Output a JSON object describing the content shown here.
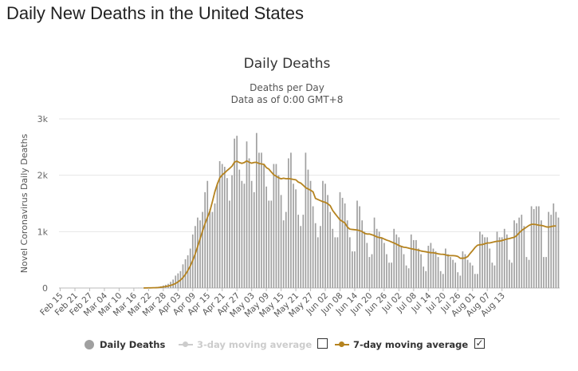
{
  "page_title": "Daily New Deaths in the United States",
  "colors": {
    "bar": "#a0a0a0",
    "line": "#b5831f",
    "disabled": "#cccccc",
    "grid": "#e6e6e6",
    "text": "#333333"
  },
  "chart_data": {
    "type": "bar",
    "title": "Daily Deaths",
    "subtitle_lines": [
      "Deaths per Day",
      "Data as of 0:00 GMT+8"
    ],
    "ylabel": "Novel Coronavirus Daily Deaths",
    "xlabel": "",
    "ylim": [
      0,
      3000
    ],
    "yticks": [
      {
        "value": 0,
        "label": "0"
      },
      {
        "value": 1000,
        "label": "1k"
      },
      {
        "value": 2000,
        "label": "2k"
      },
      {
        "value": 3000,
        "label": "3k"
      }
    ],
    "grid": true,
    "legend_position": "bottom",
    "start_date": "Feb 15",
    "x_tick_labels": [
      "Feb 15",
      "Feb 21",
      "Feb 27",
      "Mar 04",
      "Mar 10",
      "Mar 16",
      "Mar 22",
      "Mar 28",
      "Apr 03",
      "Apr 09",
      "Apr 15",
      "Apr 21",
      "Apr 27",
      "May 03",
      "May 09",
      "May 15",
      "May 21",
      "May 27",
      "Jun 02",
      "Jun 08",
      "Jun 14",
      "Jun 20",
      "Jun 26",
      "Jul 02",
      "Jul 08",
      "Jul 14",
      "Jul 20",
      "Jul 26",
      "Aug 01",
      "Aug 07",
      "Aug 13"
    ],
    "series": [
      {
        "name": "Daily Deaths",
        "kind": "bar",
        "values": [
          0,
          0,
          0,
          0,
          0,
          0,
          0,
          0,
          0,
          0,
          0,
          0,
          0,
          0,
          0,
          0,
          0,
          0,
          0,
          0,
          0,
          0,
          0,
          0,
          0,
          0,
          0,
          0,
          0,
          0,
          1,
          2,
          3,
          4,
          3,
          4,
          5,
          7,
          12,
          16,
          22,
          30,
          45,
          58,
          75,
          110,
          150,
          220,
          260,
          300,
          420,
          510,
          580,
          700,
          950,
          1100,
          1250,
          1200,
          1350,
          1700,
          1900,
          1400,
          1350,
          1500,
          1850,
          2250,
          2200,
          2150,
          1950,
          1550,
          2000,
          2650,
          2700,
          2100,
          1900,
          1850,
          2600,
          2300,
          1900,
          1700,
          2750,
          2400,
          2400,
          2200,
          1800,
          1550,
          1550,
          2200,
          2200,
          2000,
          1650,
          1200,
          1350,
          2300,
          2400,
          1850,
          1750,
          1300,
          1100,
          1300,
          2400,
          2100,
          1900,
          1450,
          1150,
          900,
          1100,
          1900,
          1850,
          1650,
          1350,
          1050,
          900,
          900,
          1700,
          1600,
          1500,
          1200,
          900,
          650,
          650,
          1550,
          1450,
          1200,
          1000,
          800,
          550,
          600,
          1250,
          1050,
          1000,
          900,
          800,
          600,
          450,
          450,
          1050,
          950,
          900,
          750,
          600,
          400,
          350,
          950,
          850,
          850,
          700,
          600,
          380,
          300,
          750,
          800,
          700,
          650,
          550,
          300,
          250,
          700,
          600,
          550,
          500,
          450,
          280,
          220,
          650,
          600,
          500,
          450,
          400,
          250,
          250,
          1000,
          950,
          900,
          900,
          700,
          450,
          400,
          1000,
          900,
          900,
          1050,
          950,
          500,
          450,
          1200,
          1150,
          1250,
          1300,
          1100,
          550,
          500,
          1450,
          1400,
          1450,
          1450,
          1200,
          550,
          550,
          1350,
          1300,
          1500,
          1350,
          1250
        ]
      },
      {
        "name": "3-day moving average",
        "kind": "line",
        "visible": false
      },
      {
        "name": "7-day moving average",
        "kind": "line",
        "values": [
          0,
          0,
          0,
          0,
          0,
          0,
          0,
          0,
          0,
          0,
          0,
          0,
          0,
          0,
          0,
          0,
          0,
          0,
          0,
          0,
          0,
          0,
          0,
          0,
          0,
          0,
          0,
          0,
          0,
          0,
          0,
          0,
          0,
          0,
          1,
          2,
          3,
          4,
          5,
          6,
          9,
          14,
          20,
          27,
          35,
          47,
          62,
          82,
          109,
          142,
          184,
          241,
          310,
          390,
          490,
          603,
          735,
          874,
          1013,
          1141,
          1255,
          1367,
          1531,
          1706,
          1843,
          1951,
          2007,
          2041,
          2085,
          2121,
          2162,
          2233,
          2250,
          2225,
          2211,
          2225,
          2255,
          2231,
          2214,
          2227,
          2230,
          2209,
          2201,
          2194,
          2135,
          2110,
          2058,
          2009,
          1983,
          1955,
          1937,
          1947,
          1939,
          1940,
          1935,
          1926,
          1919,
          1880,
          1861,
          1823,
          1780,
          1758,
          1735,
          1707,
          1590,
          1570,
          1550,
          1532,
          1520,
          1496,
          1460,
          1376,
          1319,
          1263,
          1209,
          1181,
          1153,
          1082,
          1045,
          1039,
          1034,
          1029,
          1018,
          1002,
          969,
          958,
          959,
          945,
          930,
          907,
          895,
          889,
          870,
          850,
          836,
          817,
          799,
          778,
          754,
          738,
          724,
          719,
          707,
          697,
          689,
          679,
          670,
          657,
          649,
          643,
          634,
          627,
          626,
          617,
          606,
          600,
          598,
          590,
          576,
          575,
          575,
          571,
          560,
          528,
          528,
          533,
          557,
          612,
          663,
          718,
          759,
          767,
          771,
          785,
          800,
          800,
          810,
          820,
          830,
          832,
          842,
          856,
          868,
          878,
          890,
          900,
          930,
          980,
          1020,
          1050,
          1080,
          1110,
          1130,
          1130,
          1125,
          1115,
          1110,
          1100,
          1085,
          1080,
          1090,
          1100,
          1100
        ]
      }
    ]
  },
  "legend": {
    "daily": "Daily Deaths",
    "ma3": "3-day moving average",
    "ma7": "7-day moving average",
    "ma3_checked": "",
    "ma7_checked": "✓"
  }
}
